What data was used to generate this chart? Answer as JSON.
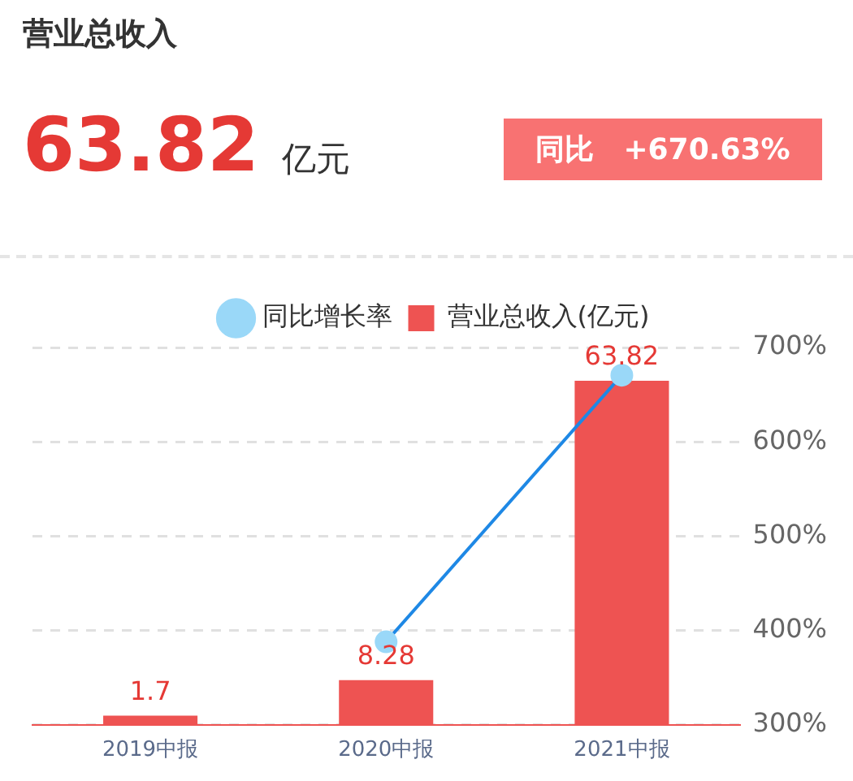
{
  "chart_data": {
    "type": "bar",
    "title": "营业总收入",
    "annotations": [
      "63.82",
      "亿元",
      "同比",
      "+670.63%"
    ],
    "categories": [
      "2019中报",
      "2020中报",
      "2021中报"
    ],
    "series": [
      {
        "name": "营业总收入(亿元)",
        "color": "#ee5352",
        "values": [
          1.7,
          8.28,
          63.82
        ],
        "value_labels": [
          "1.7",
          "8.28",
          "63.82"
        ]
      },
      {
        "name": "同比增长率",
        "type": "line",
        "axis": "y2",
        "color": "#1e88e5",
        "values": [
          null,
          388,
          670.63
        ]
      }
    ],
    "y2lim": [
      300,
      700
    ],
    "y2ticks": [
      {
        "value": 300,
        "label": "300%"
      },
      {
        "value": 400,
        "label": "400%"
      },
      {
        "value": 500,
        "label": "500%"
      },
      {
        "value": 600,
        "label": "600%"
      },
      {
        "value": 700,
        "label": "700%"
      }
    ],
    "grid": true,
    "legend": "top",
    "marker": "circle"
  }
}
